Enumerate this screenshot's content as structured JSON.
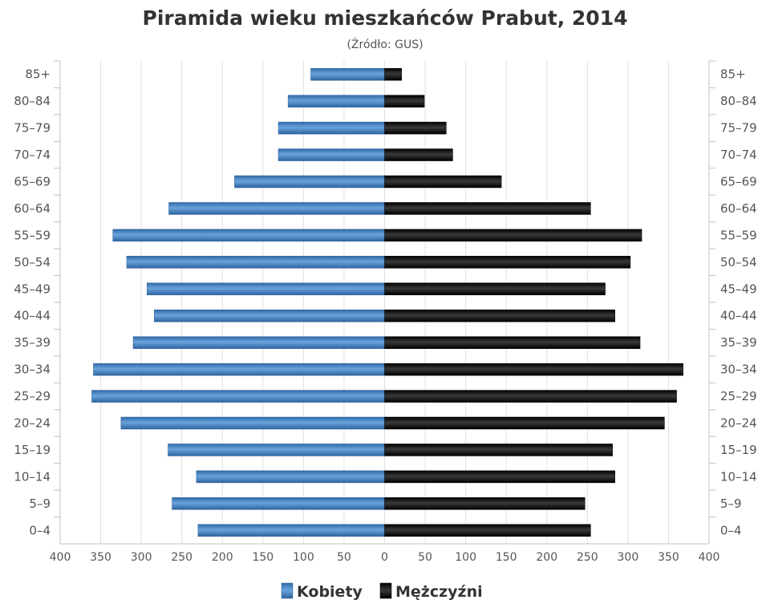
{
  "chart_data": {
    "type": "bar",
    "orientation": "horizontal-population-pyramid",
    "title": "Piramida wieku mieszkańców Prabut, 2014",
    "subtitle": "(Źródło: GUS)",
    "categories": [
      "0–4",
      "5–9",
      "10–14",
      "15–19",
      "20–24",
      "25–29",
      "30–34",
      "35–39",
      "40–44",
      "45–49",
      "50–54",
      "55–59",
      "60–64",
      "65–69",
      "70–74",
      "75–79",
      "80–84",
      "85+"
    ],
    "series": [
      {
        "name": "Kobiety",
        "side": "left",
        "color": "#4a86c5",
        "values": [
          230,
          262,
          232,
          267,
          325,
          361,
          359,
          310,
          284,
          293,
          318,
          335,
          266,
          185,
          131,
          131,
          119,
          91
        ]
      },
      {
        "name": "Mężczyźni",
        "side": "right",
        "color": "#1a1a1a",
        "values": [
          254,
          247,
          284,
          281,
          345,
          360,
          368,
          315,
          284,
          272,
          303,
          317,
          254,
          144,
          84,
          76,
          49,
          21
        ]
      }
    ],
    "xlim": [
      -400,
      400
    ],
    "x_ticks": [
      "400",
      "350",
      "300",
      "250",
      "200",
      "150",
      "100",
      "50",
      "0",
      "50",
      "100",
      "150",
      "200",
      "250",
      "300",
      "350",
      "400"
    ],
    "grid": true,
    "legend_position": "bottom-center"
  }
}
